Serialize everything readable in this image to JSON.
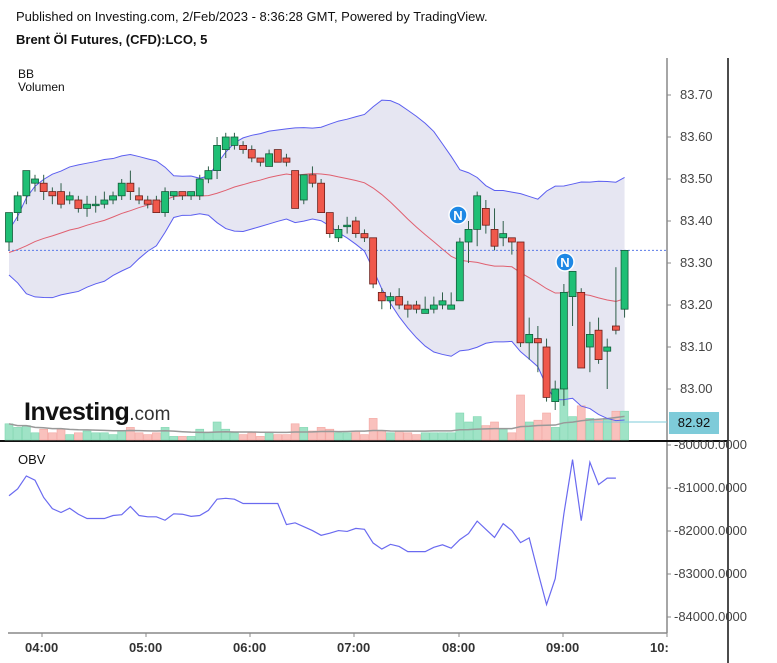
{
  "header": {
    "published": "Published on Investing.com, 2/Feb/2023 - 8:36:28 GMT, Powered by TradingView.",
    "instrument": "Brent Öl Futures, (CFD):LCO, 5"
  },
  "main_pane": {
    "indicator_labels": [
      "BB",
      "Volumen"
    ],
    "current_price_label": "82.92",
    "logo": {
      "brand": "Investing",
      "suffix": ".com"
    },
    "news_marker_label": "N"
  },
  "obv_pane": {
    "label": "OBV"
  },
  "colors": {
    "up": "#1fbf75",
    "down": "#f0584b",
    "bb_band": "#5b5ef0",
    "bb_basis": "#e06070",
    "bb_fill": "#e6e6f2",
    "volume_up": "#9fe3c6",
    "volume_down": "#f9c1bd",
    "volume_ma": "#999999",
    "obv_line": "#6a6af0",
    "last_price_line": "#5b7be8",
    "price_badge": "#7ecbd9",
    "news_marker": "#1e88e5"
  },
  "chart_data": [
    {
      "type": "candlestick",
      "title": "Brent Öl Futures, (CFD):LCO, 5",
      "subtitle": "Published on Investing.com, 2/Feb/2023 - 8:36:28 GMT, Powered by TradingView.",
      "interval": "5 min",
      "xlabel": "",
      "ylabel": "",
      "x_ticks": [
        "04:00",
        "05:00",
        "06:00",
        "07:00",
        "08:00",
        "09:00",
        "10:"
      ],
      "y_ticks": [
        83.7,
        83.6,
        83.5,
        83.4,
        83.3,
        83.2,
        83.1,
        83.0
      ],
      "ylim": [
        82.88,
        83.79
      ],
      "last_price": 82.92,
      "dotted_reference_price": 83.33,
      "indicators": [
        "BB",
        "Volumen"
      ],
      "candles": [
        {
          "t": "03:35",
          "o": 83.35,
          "h": 83.42,
          "l": 83.33,
          "c": 83.42
        },
        {
          "t": "03:40",
          "o": 83.42,
          "h": 83.47,
          "l": 83.4,
          "c": 83.46
        },
        {
          "t": "03:45",
          "o": 83.46,
          "h": 83.52,
          "l": 83.44,
          "c": 83.52
        },
        {
          "t": "03:50",
          "o": 83.49,
          "h": 83.51,
          "l": 83.47,
          "c": 83.5
        },
        {
          "t": "03:55",
          "o": 83.49,
          "h": 83.51,
          "l": 83.45,
          "c": 83.47
        },
        {
          "t": "04:00",
          "o": 83.47,
          "h": 83.48,
          "l": 83.44,
          "c": 83.46
        },
        {
          "t": "04:05",
          "o": 83.47,
          "h": 83.49,
          "l": 83.43,
          "c": 83.44
        },
        {
          "t": "04:10",
          "o": 83.45,
          "h": 83.47,
          "l": 83.44,
          "c": 83.46
        },
        {
          "t": "04:15",
          "o": 83.45,
          "h": 83.46,
          "l": 83.42,
          "c": 83.43
        },
        {
          "t": "04:20",
          "o": 83.43,
          "h": 83.46,
          "l": 83.41,
          "c": 83.44
        },
        {
          "t": "04:25",
          "o": 83.44,
          "h": 83.46,
          "l": 83.42,
          "c": 83.44
        },
        {
          "t": "04:30",
          "o": 83.44,
          "h": 83.47,
          "l": 83.43,
          "c": 83.45
        },
        {
          "t": "04:35",
          "o": 83.45,
          "h": 83.47,
          "l": 83.44,
          "c": 83.46
        },
        {
          "t": "04:40",
          "o": 83.46,
          "h": 83.5,
          "l": 83.45,
          "c": 83.49
        },
        {
          "t": "04:45",
          "o": 83.49,
          "h": 83.52,
          "l": 83.45,
          "c": 83.47
        },
        {
          "t": "04:50",
          "o": 83.46,
          "h": 83.48,
          "l": 83.44,
          "c": 83.45
        },
        {
          "t": "04:55",
          "o": 83.45,
          "h": 83.46,
          "l": 83.43,
          "c": 83.44
        },
        {
          "t": "05:00",
          "o": 83.45,
          "h": 83.46,
          "l": 83.42,
          "c": 83.42
        },
        {
          "t": "05:05",
          "o": 83.42,
          "h": 83.48,
          "l": 83.41,
          "c": 83.47
        },
        {
          "t": "05:10",
          "o": 83.46,
          "h": 83.47,
          "l": 83.45,
          "c": 83.47
        },
        {
          "t": "05:15",
          "o": 83.47,
          "h": 83.47,
          "l": 83.45,
          "c": 83.46
        },
        {
          "t": "05:20",
          "o": 83.46,
          "h": 83.47,
          "l": 83.45,
          "c": 83.47
        },
        {
          "t": "05:25",
          "o": 83.46,
          "h": 83.51,
          "l": 83.45,
          "c": 83.5
        },
        {
          "t": "05:30",
          "o": 83.5,
          "h": 83.53,
          "l": 83.49,
          "c": 83.52
        },
        {
          "t": "05:35",
          "o": 83.52,
          "h": 83.6,
          "l": 83.5,
          "c": 83.58
        },
        {
          "t": "05:40",
          "o": 83.57,
          "h": 83.61,
          "l": 83.55,
          "c": 83.6
        },
        {
          "t": "05:45",
          "o": 83.58,
          "h": 83.61,
          "l": 83.57,
          "c": 83.6
        },
        {
          "t": "05:50",
          "o": 83.58,
          "h": 83.59,
          "l": 83.56,
          "c": 83.57
        },
        {
          "t": "05:55",
          "o": 83.57,
          "h": 83.58,
          "l": 83.54,
          "c": 83.55
        },
        {
          "t": "06:00",
          "o": 83.55,
          "h": 83.55,
          "l": 83.53,
          "c": 83.54
        },
        {
          "t": "06:05",
          "o": 83.53,
          "h": 83.57,
          "l": 83.53,
          "c": 83.56
        },
        {
          "t": "06:10",
          "o": 83.57,
          "h": 83.57,
          "l": 83.54,
          "c": 83.54
        },
        {
          "t": "06:15",
          "o": 83.55,
          "h": 83.56,
          "l": 83.53,
          "c": 83.54
        },
        {
          "t": "06:20",
          "o": 83.52,
          "h": 83.52,
          "l": 83.43,
          "c": 83.43
        },
        {
          "t": "06:25",
          "o": 83.45,
          "h": 83.51,
          "l": 83.44,
          "c": 83.51
        },
        {
          "t": "06:30",
          "o": 83.51,
          "h": 83.53,
          "l": 83.48,
          "c": 83.49
        },
        {
          "t": "06:35",
          "o": 83.49,
          "h": 83.5,
          "l": 83.43,
          "c": 83.42
        },
        {
          "t": "06:40",
          "o": 83.42,
          "h": 83.42,
          "l": 83.36,
          "c": 83.37
        },
        {
          "t": "06:45",
          "o": 83.36,
          "h": 83.39,
          "l": 83.35,
          "c": 83.38
        },
        {
          "t": "06:50",
          "o": 83.39,
          "h": 83.41,
          "l": 83.37,
          "c": 83.39
        },
        {
          "t": "06:55",
          "o": 83.4,
          "h": 83.41,
          "l": 83.36,
          "c": 83.37
        },
        {
          "t": "07:00",
          "o": 83.37,
          "h": 83.38,
          "l": 83.35,
          "c": 83.36
        },
        {
          "t": "07:05",
          "o": 83.36,
          "h": 83.36,
          "l": 83.24,
          "c": 83.25
        },
        {
          "t": "07:10",
          "o": 83.23,
          "h": 83.24,
          "l": 83.19,
          "c": 83.21
        },
        {
          "t": "07:15",
          "o": 83.21,
          "h": 83.23,
          "l": 83.19,
          "c": 83.22
        },
        {
          "t": "07:20",
          "o": 83.22,
          "h": 83.24,
          "l": 83.19,
          "c": 83.2
        },
        {
          "t": "07:25",
          "o": 83.2,
          "h": 83.21,
          "l": 83.17,
          "c": 83.19
        },
        {
          "t": "07:30",
          "o": 83.2,
          "h": 83.21,
          "l": 83.18,
          "c": 83.19
        },
        {
          "t": "07:35",
          "o": 83.18,
          "h": 83.22,
          "l": 83.18,
          "c": 83.19
        },
        {
          "t": "07:40",
          "o": 83.19,
          "h": 83.22,
          "l": 83.18,
          "c": 83.2
        },
        {
          "t": "07:45",
          "o": 83.2,
          "h": 83.23,
          "l": 83.19,
          "c": 83.21
        },
        {
          "t": "07:50",
          "o": 83.19,
          "h": 83.23,
          "l": 83.19,
          "c": 83.2
        },
        {
          "t": "07:55",
          "o": 83.21,
          "h": 83.36,
          "l": 83.21,
          "c": 83.35
        },
        {
          "t": "08:00",
          "o": 83.35,
          "h": 83.4,
          "l": 83.3,
          "c": 83.38
        },
        {
          "t": "08:05",
          "o": 83.38,
          "h": 83.47,
          "l": 83.34,
          "c": 83.46
        },
        {
          "t": "08:10",
          "o": 83.43,
          "h": 83.45,
          "l": 83.37,
          "c": 83.39
        },
        {
          "t": "08:15",
          "o": 83.38,
          "h": 83.43,
          "l": 83.33,
          "c": 83.34
        },
        {
          "t": "08:20",
          "o": 83.36,
          "h": 83.4,
          "l": 83.34,
          "c": 83.37
        },
        {
          "t": "08:25",
          "o": 83.36,
          "h": 83.36,
          "l": 83.32,
          "c": 83.35
        },
        {
          "t": "08:30",
          "o": 83.35,
          "h": 83.35,
          "l": 83.1,
          "c": 83.11
        },
        {
          "t": "08:35",
          "o": 83.11,
          "h": 83.17,
          "l": 83.07,
          "c": 83.13
        },
        {
          "t": "08:40",
          "o": 83.12,
          "h": 83.15,
          "l": 83.04,
          "c": 83.11
        },
        {
          "t": "08:45",
          "o": 83.1,
          "h": 83.12,
          "l": 82.97,
          "c": 82.98
        },
        {
          "t": "08:50",
          "o": 82.97,
          "h": 83.02,
          "l": 82.95,
          "c": 83.0
        },
        {
          "t": "08:55",
          "o": 83.0,
          "h": 83.25,
          "l": 82.96,
          "c": 83.23
        },
        {
          "t": "09:00",
          "o": 83.22,
          "h": 83.28,
          "l": 83.15,
          "c": 83.28
        },
        {
          "t": "09:05",
          "o": 83.23,
          "h": 83.24,
          "l": 83.05,
          "c": 83.05
        },
        {
          "t": "09:10",
          "o": 83.1,
          "h": 83.16,
          "l": 83.04,
          "c": 83.13
        },
        {
          "t": "09:15",
          "o": 83.14,
          "h": 83.17,
          "l": 83.06,
          "c": 83.07
        },
        {
          "t": "09:20",
          "o": 83.09,
          "h": 83.12,
          "l": 83.0,
          "c": 83.1
        },
        {
          "t": "09:25",
          "o": 83.15,
          "h": 83.29,
          "l": 83.13,
          "c": 83.14
        },
        {
          "t": "09:30",
          "o": 83.19,
          "h": 83.33,
          "l": 83.17,
          "c": 83.33
        }
      ],
      "bollinger": {
        "upper_range": [
          83.51,
          83.7
        ],
        "basis_range": [
          83.26,
          83.51
        ],
        "lower_range": [
          82.93,
          83.43
        ]
      },
      "volume": {
        "note": "bars along bottom of price pane, green for up candles, red for down candles; gray moving average line"
      }
    },
    {
      "type": "line",
      "title": "OBV",
      "x_ticks": [
        "04:00",
        "05:00",
        "06:00",
        "07:00",
        "08:00",
        "09:00",
        "10:"
      ],
      "y_ticks": [
        -80000,
        -81000,
        -82000,
        -83000,
        -84000
      ],
      "y_tick_labels": [
        "-80000.0000",
        "-81000.0000",
        "-82000.0000",
        "-83000.0000",
        "-84000.0000"
      ],
      "ylim": [
        -84300,
        -79900
      ],
      "values": [
        -81180,
        -81020,
        -80720,
        -80820,
        -81220,
        -81480,
        -81570,
        -81470,
        -81610,
        -81710,
        -81710,
        -81710,
        -81640,
        -81620,
        -81430,
        -81640,
        -81670,
        -81670,
        -81750,
        -81600,
        -81610,
        -81660,
        -81640,
        -81520,
        -81260,
        -81240,
        -81260,
        -81360,
        -81360,
        -81360,
        -81360,
        -81360,
        -81850,
        -81810,
        -81900,
        -81990,
        -82100,
        -82050,
        -81990,
        -82010,
        -81940,
        -81960,
        -82280,
        -82420,
        -82310,
        -82360,
        -82480,
        -82480,
        -82480,
        -82380,
        -82320,
        -82400,
        -82200,
        -82060,
        -81770,
        -81960,
        -82150,
        -81830,
        -81990,
        -82270,
        -82160,
        -82950,
        -83710,
        -83110,
        -81600,
        -80340,
        -81760,
        -80400,
        -80920,
        -80770,
        -80770
      ]
    }
  ]
}
